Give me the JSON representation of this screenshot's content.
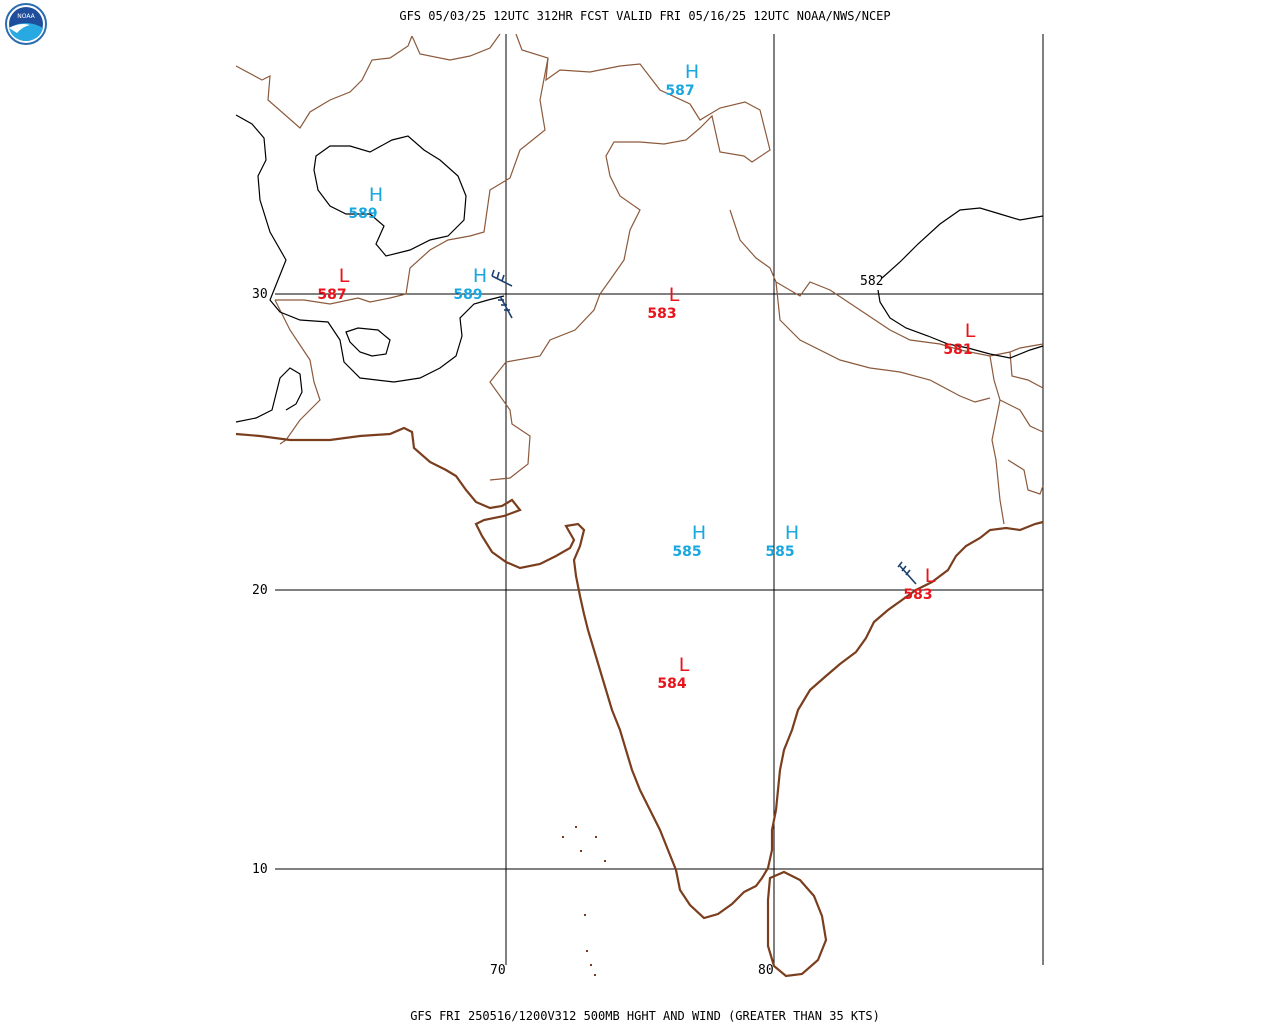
{
  "header": {
    "title": "GFS 05/03/25 12UTC 312HR FCST VALID FRI 05/16/25 12UTC NOAA/NWS/NCEP",
    "logo_text": "NOAA"
  },
  "footer": {
    "caption": "GFS FRI 250516/1200V312 500MB HGHT AND WIND (GREATER THAN 35 KTS)"
  },
  "grid": {
    "latitude_labels": [
      "30",
      "20",
      "10"
    ],
    "longitude_labels": [
      "70",
      "80"
    ]
  },
  "contour_labels": [
    "582"
  ],
  "pressure_centers": [
    {
      "type": "H",
      "value": "587",
      "color": "#1aa7e0"
    },
    {
      "type": "H",
      "value": "589",
      "color": "#1aa7e0"
    },
    {
      "type": "L",
      "value": "587",
      "color": "#e8131b"
    },
    {
      "type": "H",
      "value": "589",
      "color": "#1aa7e0"
    },
    {
      "type": "L",
      "value": "583",
      "color": "#e8131b"
    },
    {
      "type": "L",
      "value": "581",
      "color": "#e8131b"
    },
    {
      "type": "H",
      "value": "585",
      "color": "#1aa7e0"
    },
    {
      "type": "H",
      "value": "585",
      "color": "#1aa7e0"
    },
    {
      "type": "L",
      "value": "583",
      "color": "#e8131b"
    },
    {
      "type": "L",
      "value": "584",
      "color": "#e8131b"
    }
  ],
  "colors": {
    "coastline": "#7a3e1e",
    "border": "#8b5a3c",
    "contour": "#000000",
    "wind_barb": "#1c3f6e",
    "high": "#1aa7e0",
    "low": "#e8131b"
  }
}
